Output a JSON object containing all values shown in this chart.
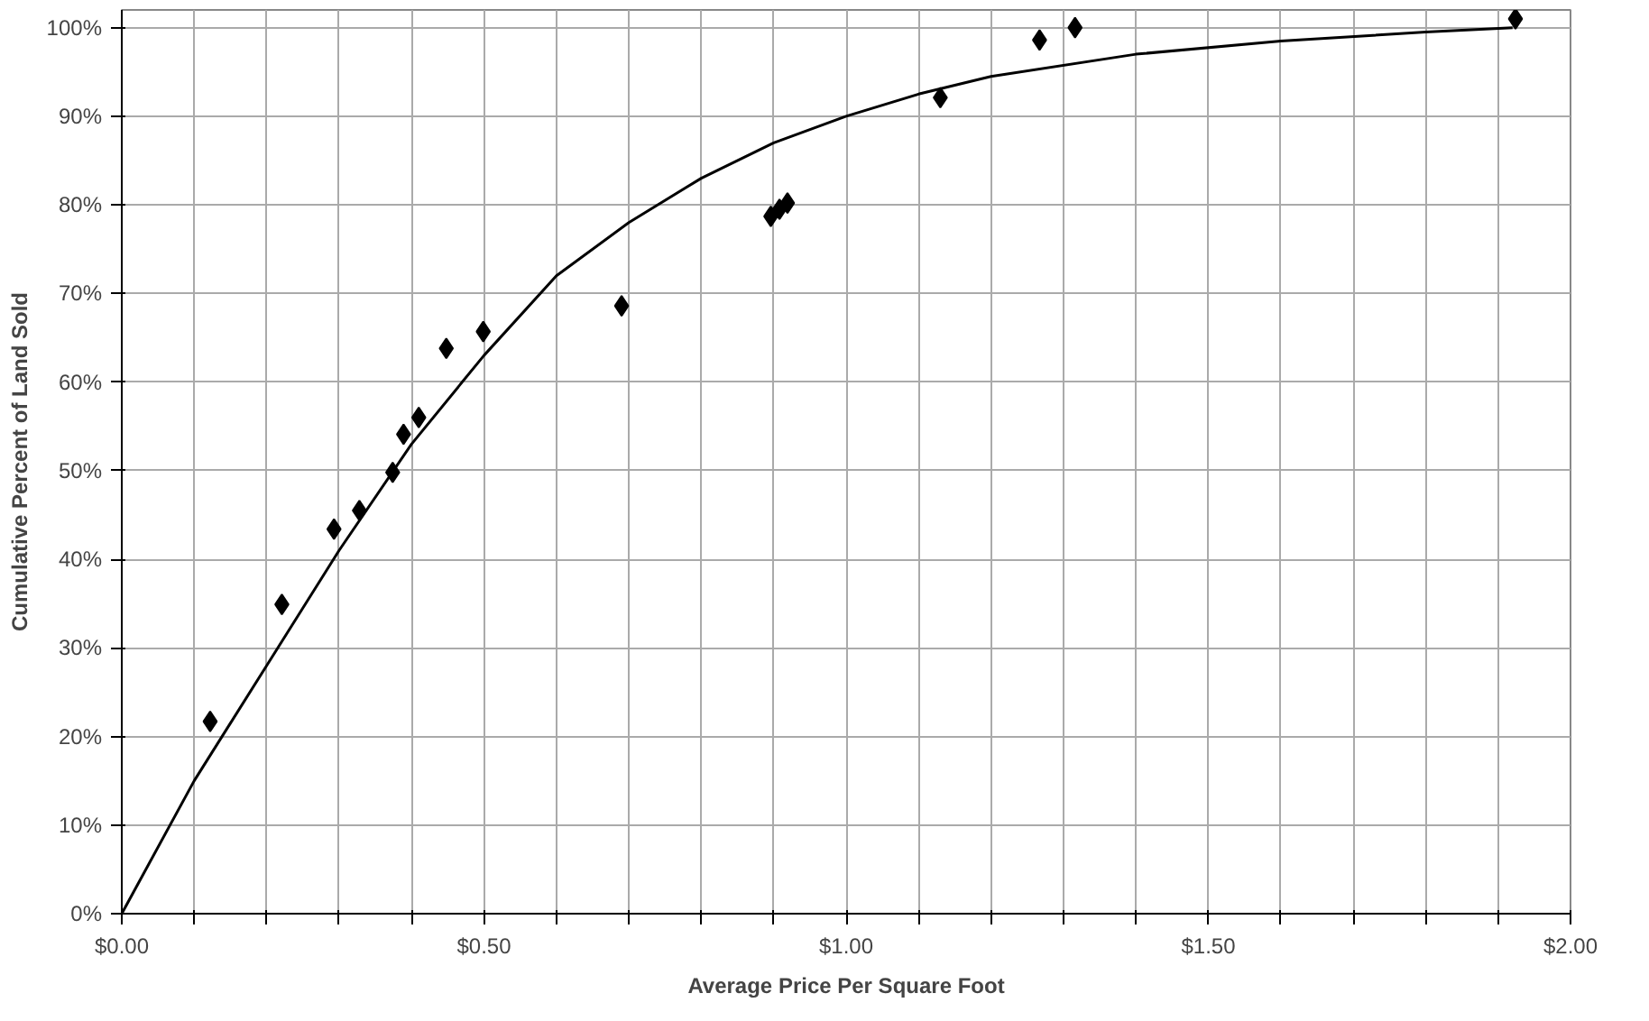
{
  "chart_data": {
    "type": "scatter",
    "xlabel": "Average Price Per Square Foot",
    "ylabel": "Cumulative Percent of Land Sold",
    "xlim": [
      0,
      2
    ],
    "ylim": [
      0,
      102
    ],
    "xticks": [
      {
        "value": 0,
        "label": "$0.00"
      },
      {
        "value": 0.1,
        "label": null
      },
      {
        "value": 0.2,
        "label": null
      },
      {
        "value": 0.3,
        "label": null
      },
      {
        "value": 0.4,
        "label": null
      },
      {
        "value": 0.5,
        "label": "$0.50"
      },
      {
        "value": 0.6,
        "label": null
      },
      {
        "value": 0.7,
        "label": null
      },
      {
        "value": 0.8,
        "label": null
      },
      {
        "value": 0.9,
        "label": null
      },
      {
        "value": 1.0,
        "label": "$1.00"
      },
      {
        "value": 1.1,
        "label": null
      },
      {
        "value": 1.2,
        "label": null
      },
      {
        "value": 1.3,
        "label": null
      },
      {
        "value": 1.4,
        "label": null
      },
      {
        "value": 1.5,
        "label": "$1.50"
      },
      {
        "value": 1.6,
        "label": null
      },
      {
        "value": 1.7,
        "label": null
      },
      {
        "value": 1.8,
        "label": null
      },
      {
        "value": 1.9,
        "label": null
      },
      {
        "value": 2.0,
        "label": "$2.00"
      }
    ],
    "yticks": [
      {
        "value": 0,
        "label": "0%"
      },
      {
        "value": 10,
        "label": "10%"
      },
      {
        "value": 20,
        "label": "20%"
      },
      {
        "value": 30,
        "label": "30%"
      },
      {
        "value": 40,
        "label": "40%"
      },
      {
        "value": 50,
        "label": "50%"
      },
      {
        "value": 60,
        "label": "60%"
      },
      {
        "value": 70,
        "label": "70%"
      },
      {
        "value": 80,
        "label": "80%"
      },
      {
        "value": 90,
        "label": "90%"
      },
      {
        "value": 100,
        "label": "100%"
      }
    ],
    "grid": true,
    "series": [
      {
        "marker": "diamond",
        "color": "#000000",
        "x": [
          0.122,
          0.221,
          0.293,
          0.328,
          0.374,
          0.389,
          0.41,
          0.448,
          0.499,
          0.69,
          0.896,
          0.908,
          0.919,
          1.13,
          1.267,
          1.316,
          1.924
        ],
        "values": [
          21.7,
          34.9,
          43.4,
          45.5,
          49.8,
          54.1,
          56.0,
          63.8,
          65.7,
          68.6,
          78.7,
          79.5,
          80.2,
          92.1,
          98.6,
          100.0,
          101.0
        ]
      },
      {
        "type": "line",
        "marker": "none",
        "color": "#000000",
        "x": [
          0,
          0.1,
          0.2,
          0.3,
          0.4,
          0.5,
          0.6,
          0.7,
          0.8,
          0.9,
          1.0,
          1.1,
          1.2,
          1.4,
          1.6,
          1.8,
          1.92
        ],
        "values": [
          0,
          15,
          28,
          41,
          53,
          63,
          72,
          78,
          83,
          87,
          90,
          92.5,
          94.5,
          97,
          98.5,
          99.5,
          100
        ]
      }
    ]
  }
}
